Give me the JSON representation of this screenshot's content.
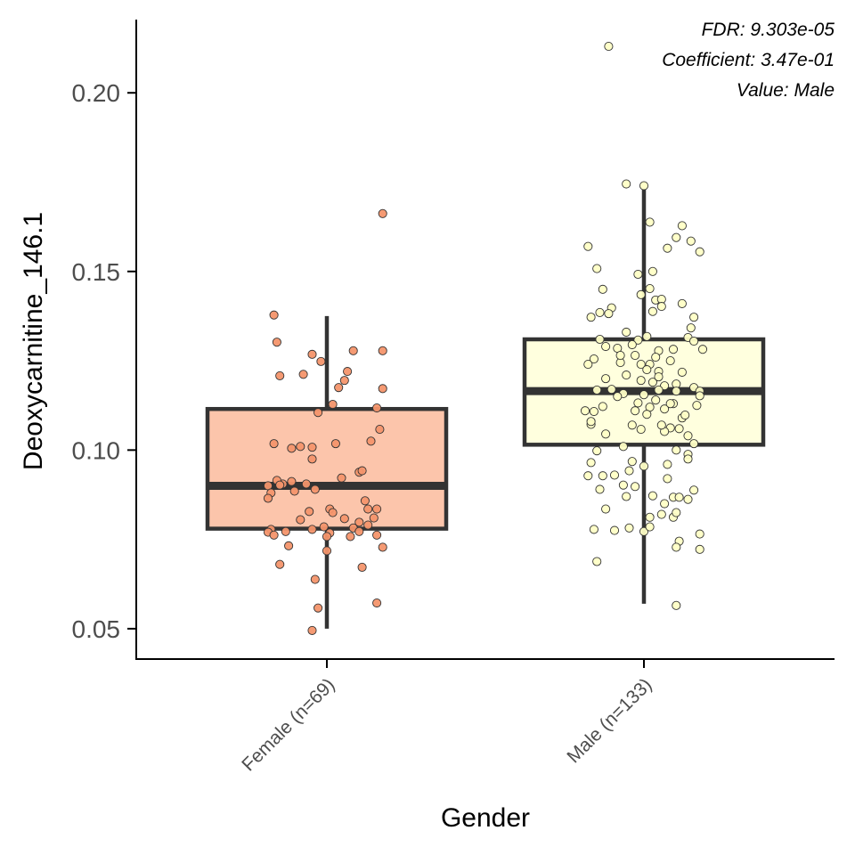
{
  "chart_data": {
    "type": "box",
    "xlabel": "Gender",
    "ylabel": "Deoxycarnitine_146.1",
    "ylim": [
      0.0415,
      0.2205
    ],
    "yticks": [
      0.05,
      0.1,
      0.15,
      0.2
    ],
    "ytick_labels": [
      "0.05",
      "0.10",
      "0.15",
      "0.20"
    ],
    "grid": false,
    "legend": "none",
    "annotations": [
      "FDR: 9.303e-05",
      "Coefficient: 3.47e-01",
      "Value: Male"
    ],
    "categories": [
      "Female (n=69)",
      "Male (n=133)"
    ],
    "boxes": [
      {
        "category": "Female (n=69)",
        "fill": "#fcc5ab",
        "point_color": "#f4956b",
        "whisker_low": 0.05,
        "q1": 0.078,
        "median": 0.09,
        "q3": 0.1115,
        "whisker_high": 0.1375,
        "points": [
          [
            -0.18,
            0.1378
          ],
          [
            -0.17,
            0.1302
          ],
          [
            0.09,
            0.1278
          ],
          [
            -0.16,
            0.1208
          ],
          [
            -0.02,
            0.1248
          ],
          [
            0.07,
            0.122
          ],
          [
            0.04,
            0.1175
          ],
          [
            0.06,
            0.1195
          ],
          [
            0.02,
            0.1128
          ],
          [
            0.19,
            0.1278
          ],
          [
            -0.05,
            0.1268
          ],
          [
            0.17,
            0.1118
          ],
          [
            0.19,
            0.1172
          ],
          [
            0.19,
            0.1662
          ],
          [
            -0.08,
            0.1212
          ],
          [
            -0.12,
            0.1005
          ],
          [
            0.18,
            0.1058
          ],
          [
            0.03,
            0.1018
          ],
          [
            0.15,
            0.1025
          ],
          [
            -0.03,
            0.1105
          ],
          [
            -0.05,
            0.1008
          ],
          [
            -0.09,
            0.101
          ],
          [
            -0.18,
            0.1018
          ],
          [
            -0.05,
            0.0975
          ],
          [
            0.05,
            0.0922
          ],
          [
            0.11,
            0.0938
          ],
          [
            0.12,
            0.0942
          ],
          [
            -0.07,
            0.0905
          ],
          [
            -0.12,
            0.0912
          ],
          [
            -0.15,
            0.0905
          ],
          [
            -0.2,
            0.09
          ],
          [
            -0.19,
            0.088
          ],
          [
            -0.2,
            0.0865
          ],
          [
            -0.17,
            0.0915
          ],
          [
            -0.16,
            0.0902
          ],
          [
            0.01,
            0.0835
          ],
          [
            0.13,
            0.0858
          ],
          [
            0.17,
            0.0835
          ],
          [
            0.02,
            0.0825
          ],
          [
            -0.06,
            0.0828
          ],
          [
            0.16,
            0.081
          ],
          [
            0.14,
            0.079
          ],
          [
            0.11,
            0.0798
          ],
          [
            0.09,
            0.0782
          ],
          [
            -0.09,
            0.0805
          ],
          [
            0.14,
            0.0835
          ],
          [
            -0.01,
            0.0785
          ],
          [
            -0.05,
            0.0778
          ],
          [
            -0.14,
            0.0772
          ],
          [
            -0.19,
            0.0778
          ],
          [
            -0.2,
            0.077
          ],
          [
            -0.18,
            0.0762
          ],
          [
            0.01,
            0.0768
          ],
          [
            0.08,
            0.0758
          ],
          [
            0.11,
            0.0772
          ],
          [
            0.0,
            0.0758
          ],
          [
            -0.13,
            0.0732
          ],
          [
            0.0,
            0.0718
          ],
          [
            0.19,
            0.0728
          ],
          [
            0.12,
            0.0672
          ],
          [
            -0.16,
            0.068
          ],
          [
            0.17,
            0.0572
          ],
          [
            -0.04,
            0.0638
          ],
          [
            -0.03,
            0.0558
          ],
          [
            -0.05,
            0.0495
          ],
          [
            0.17,
            0.0762
          ],
          [
            -0.04,
            0.089
          ],
          [
            -0.11,
            0.0885
          ],
          [
            0.06,
            0.0808
          ]
        ]
      },
      {
        "category": "Male (n=133)",
        "fill": "#ffffde",
        "point_color": "#ffffc6",
        "whisker_low": 0.057,
        "q1": 0.1015,
        "median": 0.1165,
        "q3": 0.131,
        "whisker_high": 0.173,
        "points": [
          [
            -0.12,
            0.213
          ],
          [
            -0.06,
            0.1745
          ],
          [
            0.0,
            0.174
          ],
          [
            0.02,
            0.1638
          ],
          [
            0.13,
            0.1628
          ],
          [
            0.11,
            0.1595
          ],
          [
            0.16,
            0.1585
          ],
          [
            0.08,
            0.1565
          ],
          [
            0.19,
            0.1555
          ],
          [
            -0.19,
            0.157
          ],
          [
            -0.16,
            0.1508
          ],
          [
            0.03,
            0.15
          ],
          [
            -0.02,
            0.1492
          ],
          [
            -0.14,
            0.145
          ],
          [
            -0.01,
            0.1435
          ],
          [
            0.02,
            0.1452
          ],
          [
            0.04,
            0.142
          ],
          [
            0.06,
            0.1422
          ],
          [
            0.13,
            0.141
          ],
          [
            0.06,
            0.1402
          ],
          [
            -0.11,
            0.1398
          ],
          [
            0.03,
            0.1388
          ],
          [
            -0.15,
            0.1385
          ],
          [
            -0.12,
            0.1382
          ],
          [
            -0.18,
            0.1372
          ],
          [
            0.17,
            0.1372
          ],
          [
            0.16,
            0.1342
          ],
          [
            0.15,
            0.1315
          ],
          [
            0.01,
            0.1318
          ],
          [
            -0.06,
            0.133
          ],
          [
            -0.15,
            0.131
          ],
          [
            -0.02,
            0.1308
          ],
          [
            0.17,
            0.1305
          ],
          [
            -0.13,
            0.129
          ],
          [
            -0.04,
            0.1295
          ],
          [
            -0.09,
            0.1285
          ],
          [
            0.1,
            0.1282
          ],
          [
            0.05,
            0.1278
          ],
          [
            0.04,
            0.126
          ],
          [
            0.2,
            0.1282
          ],
          [
            -0.03,
            0.1265
          ],
          [
            0.09,
            0.125
          ],
          [
            -0.17,
            0.1255
          ],
          [
            -0.08,
            0.1245
          ],
          [
            -0.01,
            0.124
          ],
          [
            0.02,
            0.124
          ],
          [
            -0.19,
            0.124
          ],
          [
            0.01,
            0.1225
          ],
          [
            0.05,
            0.122
          ],
          [
            0.13,
            0.1218
          ],
          [
            -0.06,
            0.121
          ],
          [
            -0.13,
            0.12
          ],
          [
            0.03,
            0.119
          ],
          [
            -0.01,
            0.1195
          ],
          [
            0.17,
            0.1175
          ],
          [
            0.11,
            0.1185
          ],
          [
            0.07,
            0.118
          ],
          [
            0.19,
            0.1165
          ],
          [
            0.05,
            0.1168
          ],
          [
            -0.16,
            0.1168
          ],
          [
            0.11,
            0.1165
          ],
          [
            0.0,
            0.1155
          ],
          [
            -0.07,
            0.1158
          ],
          [
            0.19,
            0.1152
          ],
          [
            0.04,
            0.114
          ],
          [
            -0.02,
            0.1132
          ],
          [
            0.1,
            0.113
          ],
          [
            -0.14,
            0.1122
          ],
          [
            0.02,
            0.112
          ],
          [
            0.07,
            0.1115
          ],
          [
            -0.03,
            0.111
          ],
          [
            0.01,
            0.11
          ],
          [
            -0.17,
            0.1108
          ],
          [
            -0.18,
            0.1072
          ],
          [
            0.09,
            0.1062
          ],
          [
            0.12,
            0.106
          ],
          [
            -0.04,
            0.107
          ],
          [
            -0.01,
            0.1058
          ],
          [
            0.07,
            0.1052
          ],
          [
            -0.13,
            0.1045
          ],
          [
            0.15,
            0.104
          ],
          [
            -0.18,
            0.108
          ],
          [
            0.17,
            0.1018
          ],
          [
            -0.07,
            0.101
          ],
          [
            0.11,
            0.1
          ],
          [
            0.15,
            0.0988
          ],
          [
            -0.16,
            0.0998
          ],
          [
            0.0,
            0.0955
          ],
          [
            -0.18,
            0.0965
          ],
          [
            0.08,
            0.096
          ],
          [
            0.15,
            0.0975
          ],
          [
            -0.14,
            0.0928
          ],
          [
            -0.1,
            0.093
          ],
          [
            -0.05,
            0.0942
          ],
          [
            -0.15,
            0.089
          ],
          [
            -0.07,
            0.0902
          ],
          [
            -0.19,
            0.0928
          ],
          [
            0.1,
            0.0868
          ],
          [
            0.12,
            0.0868
          ],
          [
            -0.06,
            0.087
          ],
          [
            0.03,
            0.0872
          ],
          [
            0.07,
            0.085
          ],
          [
            0.17,
            0.0888
          ],
          [
            0.15,
            0.0862
          ],
          [
            -0.13,
            0.0835
          ],
          [
            0.06,
            0.082
          ],
          [
            0.1,
            0.0812
          ],
          [
            0.11,
            0.0825
          ],
          [
            -0.17,
            0.0778
          ],
          [
            -0.05,
            0.0782
          ],
          [
            0.0,
            0.0772
          ],
          [
            -0.1,
            0.0775
          ],
          [
            0.02,
            0.0785
          ],
          [
            0.19,
            0.0765
          ],
          [
            0.19,
            0.0722
          ],
          [
            0.12,
            0.0745
          ],
          [
            0.11,
            0.0728
          ],
          [
            -0.16,
            0.0688
          ],
          [
            0.11,
            0.0565
          ],
          [
            0.02,
            0.0812
          ],
          [
            -0.03,
            0.0898
          ],
          [
            0.08,
            0.092
          ],
          [
            0.13,
            0.109
          ],
          [
            -0.09,
            0.115
          ],
          [
            0.06,
            0.107
          ],
          [
            -0.2,
            0.111
          ],
          [
            0.18,
            0.1125
          ],
          [
            -0.11,
            0.117
          ],
          [
            0.09,
            0.113
          ],
          [
            0.14,
            0.1098
          ],
          [
            -0.04,
            0.0968
          ],
          [
            0.05,
            0.1205
          ],
          [
            -0.08,
            0.1265
          ]
        ]
      }
    ]
  }
}
